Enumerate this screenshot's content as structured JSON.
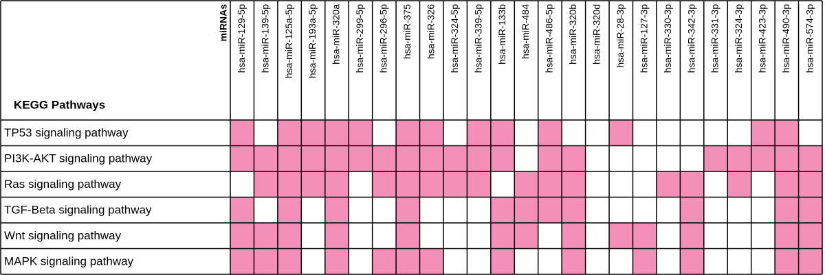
{
  "table": {
    "corner_top": "miRNAs",
    "corner_bottom": "KEGG Pathways",
    "highlight_color": "#f48fb8",
    "columns": [
      "hsa-miR-129-5p",
      "hsa-miR-139-5p",
      "hsa-miR-125a-5p",
      "hsa-miR-193a-5p",
      "hsa-miR-320a",
      "hsa-miR-299-5p",
      "hsa-miR-296-5p",
      "hsa-miR-375",
      "hsa-miR-326",
      "hsa-miR-324-5p",
      "hsa-miR-339-5p",
      "hsa-miR-133b",
      "hsa-miR-484",
      "hsa-miR-486-5p",
      "hsa-miR-320b",
      "hsa-miR-320d",
      "hsa-miR-28-3p",
      "hsa-miR-127-3p",
      "hsa-miR-330-3p",
      "hsa-miR-342-3p",
      "hsa-miR-331-3p",
      "hsa-miR-324-3p",
      "hsa-miR-423-3p",
      "hsa-miR-490-3p",
      "hsa-miR-574-3p"
    ],
    "rows": [
      {
        "label": "TP53 signaling pathway",
        "cells": [
          true,
          false,
          true,
          true,
          true,
          true,
          false,
          true,
          true,
          false,
          true,
          true,
          false,
          true,
          false,
          false,
          true,
          false,
          false,
          false,
          false,
          false,
          true,
          true,
          false
        ]
      },
      {
        "label": "PI3K-AKT signaling pathway",
        "cells": [
          true,
          true,
          true,
          true,
          true,
          true,
          true,
          true,
          true,
          true,
          true,
          true,
          false,
          true,
          true,
          false,
          false,
          false,
          false,
          false,
          true,
          true,
          true,
          true,
          true
        ]
      },
      {
        "label": "Ras signaling pathway",
        "cells": [
          false,
          true,
          true,
          true,
          true,
          false,
          true,
          true,
          true,
          true,
          true,
          false,
          true,
          true,
          true,
          false,
          false,
          false,
          true,
          true,
          false,
          true,
          false,
          true,
          true
        ]
      },
      {
        "label": "TGF-Beta signaling pathway",
        "cells": [
          true,
          false,
          true,
          false,
          true,
          false,
          false,
          true,
          false,
          false,
          false,
          true,
          true,
          true,
          true,
          false,
          false,
          false,
          false,
          true,
          false,
          false,
          false,
          true,
          true
        ]
      },
      {
        "label": "Wnt signaling pathway",
        "cells": [
          true,
          true,
          true,
          false,
          true,
          false,
          false,
          true,
          false,
          false,
          false,
          true,
          true,
          false,
          true,
          false,
          true,
          true,
          false,
          true,
          false,
          false,
          false,
          true,
          true
        ]
      },
      {
        "label": "MAPK signaling pathway",
        "cells": [
          true,
          true,
          true,
          false,
          true,
          false,
          true,
          true,
          true,
          false,
          false,
          true,
          false,
          false,
          true,
          false,
          false,
          true,
          false,
          true,
          false,
          false,
          false,
          true,
          true
        ]
      }
    ]
  }
}
